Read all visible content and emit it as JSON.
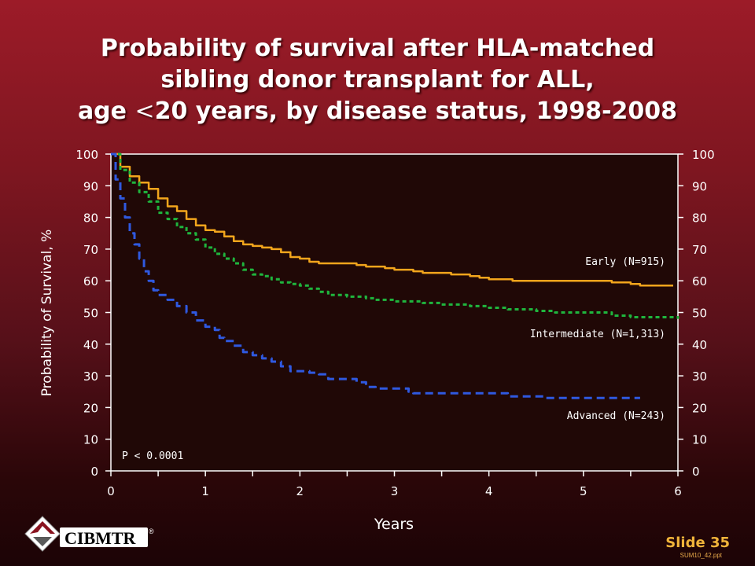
{
  "title": {
    "line1": "Probability of survival after HLA-matched",
    "line2": "sibling donor transplant for ALL,",
    "line3_pre": "age ",
    "line3_sym": "<",
    "line3_post": "20 years, by disease status, 1998-2008"
  },
  "chart_data": {
    "type": "line",
    "xlabel": "Years",
    "ylabel": "Probability of Survival, %",
    "xlim": [
      0,
      6
    ],
    "ylim": [
      0,
      100
    ],
    "xticks": [
      "0",
      "1",
      "2",
      "3",
      "4",
      "5",
      "6"
    ],
    "yticks": [
      "0",
      "10",
      "20",
      "30",
      "40",
      "50",
      "60",
      "70",
      "80",
      "90",
      "100"
    ],
    "grid": false,
    "annotation": "P < 0.0001",
    "series": [
      {
        "name": "Early (N=915)",
        "color": "#f2a51c",
        "style": "solid",
        "points": [
          [
            0,
            100
          ],
          [
            0.1,
            96
          ],
          [
            0.2,
            93
          ],
          [
            0.3,
            91
          ],
          [
            0.4,
            89
          ],
          [
            0.5,
            86
          ],
          [
            0.6,
            83.5
          ],
          [
            0.7,
            82
          ],
          [
            0.8,
            79.5
          ],
          [
            0.9,
            77.5
          ],
          [
            1.0,
            76
          ],
          [
            1.1,
            75.5
          ],
          [
            1.2,
            74
          ],
          [
            1.3,
            72.5
          ],
          [
            1.4,
            71.5
          ],
          [
            1.5,
            71
          ],
          [
            1.6,
            70.5
          ],
          [
            1.7,
            70
          ],
          [
            1.8,
            69
          ],
          [
            1.9,
            67.5
          ],
          [
            2.0,
            67
          ],
          [
            2.1,
            66
          ],
          [
            2.2,
            65.5
          ],
          [
            2.4,
            65.5
          ],
          [
            2.6,
            65
          ],
          [
            2.7,
            64.5
          ],
          [
            2.9,
            64
          ],
          [
            3.0,
            63.5
          ],
          [
            3.2,
            63
          ],
          [
            3.3,
            62.5
          ],
          [
            3.6,
            62
          ],
          [
            3.8,
            61.5
          ],
          [
            3.9,
            61
          ],
          [
            4.0,
            60.5
          ],
          [
            4.2,
            60.5
          ],
          [
            4.25,
            60
          ],
          [
            5.2,
            60
          ],
          [
            5.3,
            59.5
          ],
          [
            5.5,
            59
          ],
          [
            5.6,
            58.5
          ],
          [
            5.95,
            58.5
          ]
        ]
      },
      {
        "name": "Intermediate (N=1,313)",
        "color": "#1fb53d",
        "style": "dashed",
        "points": [
          [
            0,
            100
          ],
          [
            0.1,
            95
          ],
          [
            0.2,
            91
          ],
          [
            0.3,
            88
          ],
          [
            0.4,
            85
          ],
          [
            0.5,
            81.5
          ],
          [
            0.6,
            79.5
          ],
          [
            0.7,
            77
          ],
          [
            0.8,
            75
          ],
          [
            0.9,
            73
          ],
          [
            1.0,
            70.5
          ],
          [
            1.1,
            68.5
          ],
          [
            1.2,
            67
          ],
          [
            1.3,
            65.5
          ],
          [
            1.4,
            63.5
          ],
          [
            1.5,
            62
          ],
          [
            1.6,
            61.5
          ],
          [
            1.7,
            60.5
          ],
          [
            1.8,
            59.5
          ],
          [
            1.9,
            59
          ],
          [
            2.0,
            58.5
          ],
          [
            2.1,
            57.5
          ],
          [
            2.2,
            56.5
          ],
          [
            2.3,
            55.5
          ],
          [
            2.5,
            55
          ],
          [
            2.7,
            54.5
          ],
          [
            2.8,
            54
          ],
          [
            3.0,
            53.5
          ],
          [
            3.2,
            53.5
          ],
          [
            3.3,
            53
          ],
          [
            3.5,
            52.5
          ],
          [
            3.8,
            52
          ],
          [
            4.0,
            51.5
          ],
          [
            4.2,
            51
          ],
          [
            4.5,
            50.5
          ],
          [
            4.7,
            50
          ],
          [
            5.2,
            50
          ],
          [
            5.3,
            49
          ],
          [
            5.5,
            48.5
          ],
          [
            6.0,
            48
          ]
        ]
      },
      {
        "name": "Advanced (N=243)",
        "color": "#2f59e0",
        "style": "dashed",
        "points": [
          [
            0,
            100
          ],
          [
            0.05,
            92
          ],
          [
            0.1,
            86
          ],
          [
            0.15,
            80
          ],
          [
            0.2,
            75
          ],
          [
            0.25,
            71.5
          ],
          [
            0.3,
            67
          ],
          [
            0.35,
            63
          ],
          [
            0.4,
            60
          ],
          [
            0.45,
            57
          ],
          [
            0.5,
            55.5
          ],
          [
            0.6,
            54
          ],
          [
            0.7,
            52
          ],
          [
            0.8,
            50
          ],
          [
            0.9,
            47.5
          ],
          [
            1.0,
            45.5
          ],
          [
            1.1,
            44.5
          ],
          [
            1.15,
            42
          ],
          [
            1.2,
            41
          ],
          [
            1.3,
            39.5
          ],
          [
            1.4,
            37.5
          ],
          [
            1.5,
            36.5
          ],
          [
            1.6,
            35.5
          ],
          [
            1.7,
            34.5
          ],
          [
            1.8,
            33
          ],
          [
            1.9,
            31.5
          ],
          [
            2.1,
            31
          ],
          [
            2.2,
            30.5
          ],
          [
            2.3,
            29
          ],
          [
            2.5,
            29
          ],
          [
            2.6,
            28
          ],
          [
            2.7,
            26.5
          ],
          [
            2.8,
            26
          ],
          [
            3.1,
            26
          ],
          [
            3.15,
            25
          ],
          [
            3.2,
            24.5
          ],
          [
            4.1,
            24.5
          ],
          [
            4.2,
            23.5
          ],
          [
            4.5,
            23.5
          ],
          [
            4.6,
            23
          ],
          [
            5.6,
            23
          ]
        ]
      }
    ]
  },
  "logo": {
    "text": "CIBMTR",
    "mark": "®"
  },
  "footer": {
    "slide": "Slide 35",
    "file": "SUM10_42.ppt"
  }
}
